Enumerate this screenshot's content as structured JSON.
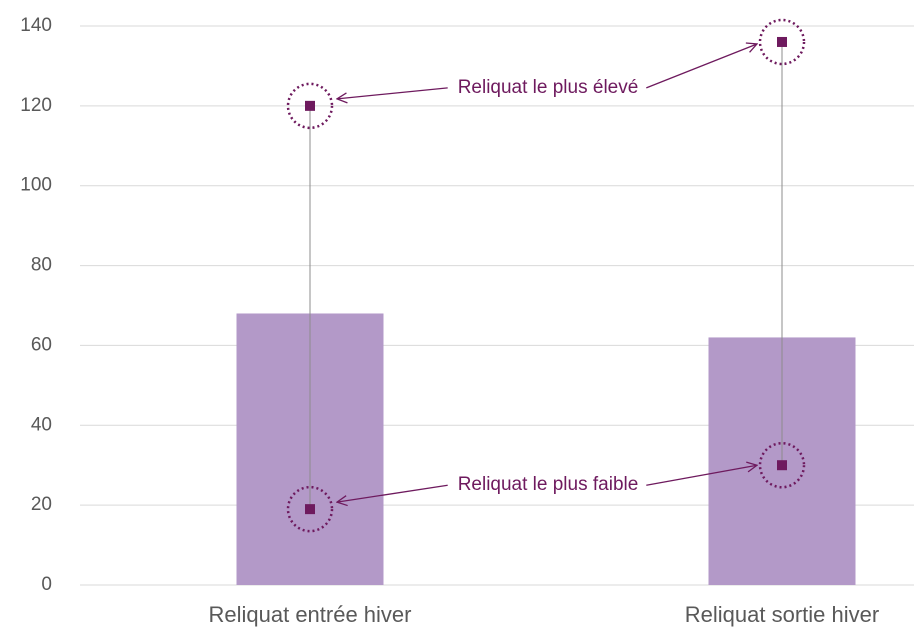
{
  "chart_data": {
    "type": "bar",
    "categories": [
      "Reliquat entrée hiver",
      "Reliquat sortie hiver"
    ],
    "values": [
      68,
      62
    ],
    "color": "#b399c8",
    "high": [
      120,
      136
    ],
    "low": [
      19,
      30
    ],
    "marker_color": "#6e1a5e",
    "annotations": [
      "Reliquat le plus élevé",
      "Reliquat le plus faible"
    ],
    "ylim": [
      0,
      140
    ],
    "yticks": [
      0,
      20,
      40,
      60,
      80,
      100,
      120,
      140
    ],
    "grid": true
  }
}
